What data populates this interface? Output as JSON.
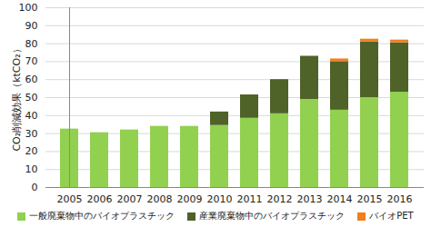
{
  "chart_data": {
    "type": "bar",
    "stacked": true,
    "grid": true,
    "y_label": "CO₂削減効果（ktCO₂）",
    "categories": [
      "2005",
      "2006",
      "2007",
      "2008",
      "2009",
      "2010",
      "2011",
      "2012",
      "2013",
      "2014",
      "2015",
      "2016"
    ],
    "ylim": [
      0,
      100
    ],
    "yticks": [
      0,
      10,
      20,
      30,
      40,
      50,
      60,
      70,
      80,
      90,
      100
    ],
    "legend": "bottom",
    "series": [
      {
        "name": "一般廃棄物中のバイオプラスチック",
        "color": "#92d050",
        "values": [
          32.5,
          30.5,
          32,
          34,
          34,
          34.5,
          38.5,
          41,
          49,
          43,
          50,
          53
        ]
      },
      {
        "name": "産業廃棄物中のバイオプラスチック",
        "color": "#4f6228",
        "values": [
          0,
          0,
          0,
          0,
          0,
          7.5,
          13,
          19,
          24,
          27,
          31,
          27.5
        ]
      },
      {
        "name": "バイオPET",
        "color": "#f07f1e",
        "values": [
          0,
          0,
          0,
          0,
          0,
          0,
          0,
          0,
          0,
          1.5,
          1.5,
          1.5
        ]
      }
    ]
  }
}
